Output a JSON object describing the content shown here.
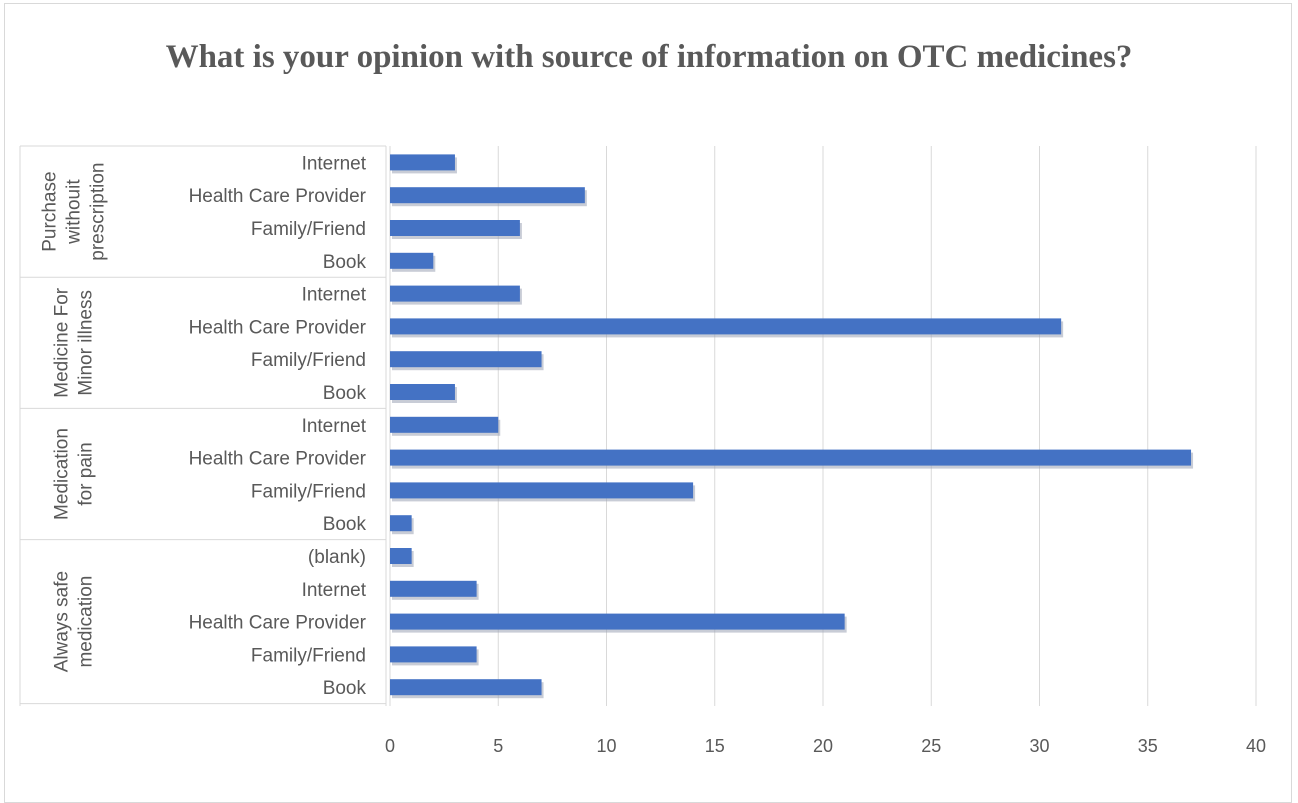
{
  "chart_data": {
    "type": "bar",
    "orientation": "horizontal",
    "title": "What is your opinion with source of information on OTC medicines?",
    "xlim": [
      0,
      40
    ],
    "x_ticks": [
      0,
      5,
      10,
      15,
      20,
      25,
      30,
      35,
      40
    ],
    "grid": "vertical",
    "legend": "none",
    "bar_color": "#4472c4",
    "groups": [
      {
        "name_lines": [
          "Purchase",
          "withouit",
          "prescription"
        ],
        "categories": [
          "Internet",
          "Health Care Provider",
          "Family/Friend",
          "Book"
        ],
        "values": [
          3,
          9,
          6,
          2
        ]
      },
      {
        "name_lines": [
          "Medicine For",
          "Minor illness"
        ],
        "categories": [
          "Internet",
          "Health Care Provider",
          "Family/Friend",
          "Book"
        ],
        "values": [
          6,
          31,
          7,
          3
        ]
      },
      {
        "name_lines": [
          "Medication",
          "for pain"
        ],
        "categories": [
          "Internet",
          "Health Care Provider",
          "Family/Friend",
          "Book"
        ],
        "values": [
          5,
          37,
          14,
          1
        ]
      },
      {
        "name_lines": [
          "Always safe",
          "medication"
        ],
        "categories": [
          "(blank)",
          "Internet",
          "Health Care Provider",
          "Family/Friend",
          "Book"
        ],
        "values": [
          1,
          4,
          21,
          4,
          7
        ]
      }
    ]
  }
}
